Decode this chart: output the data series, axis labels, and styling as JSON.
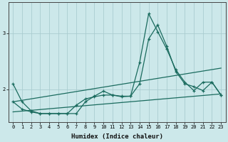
{
  "x": [
    0,
    1,
    2,
    3,
    4,
    5,
    6,
    7,
    8,
    9,
    10,
    11,
    12,
    13,
    14,
    15,
    16,
    17,
    18,
    19,
    20,
    21,
    22,
    23
  ],
  "line1": [
    2.1,
    1.78,
    1.62,
    1.57,
    1.57,
    1.57,
    1.57,
    1.57,
    1.78,
    1.88,
    1.97,
    1.9,
    1.88,
    1.88,
    2.48,
    3.35,
    3.03,
    2.72,
    2.35,
    2.13,
    1.98,
    2.13,
    2.13,
    1.9
  ],
  "line2": [
    1.78,
    1.65,
    1.6,
    1.57,
    1.57,
    1.57,
    1.57,
    1.72,
    1.83,
    1.87,
    1.9,
    1.9,
    1.87,
    1.88,
    2.1,
    2.9,
    3.15,
    2.77,
    2.32,
    2.1,
    2.05,
    1.98,
    2.13,
    1.9
  ],
  "trend1_x": [
    0,
    23
  ],
  "trend1_y": [
    1.78,
    2.38
  ],
  "trend2_x": [
    0,
    23
  ],
  "trend2_y": [
    1.6,
    1.92
  ],
  "line_color": "#1a6b5e",
  "bg_color": "#cce8ea",
  "grid_color": "#aacdd0",
  "xlabel": "Humidex (Indice chaleur)",
  "xlim": [
    -0.5,
    23.5
  ],
  "ylim": [
    1.42,
    3.55
  ],
  "yticks": [
    2,
    3
  ],
  "xticks": [
    0,
    1,
    2,
    3,
    4,
    5,
    6,
    7,
    8,
    9,
    10,
    11,
    12,
    13,
    14,
    15,
    16,
    17,
    18,
    19,
    20,
    21,
    22,
    23
  ]
}
